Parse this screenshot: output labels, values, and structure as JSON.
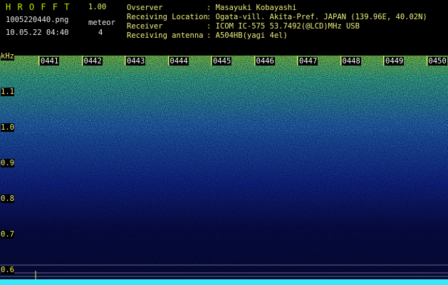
{
  "header": {
    "app_name": "H R O F F T",
    "version": "1.00",
    "file_name": "1005220440.png",
    "counter_label": "meteor",
    "timestamp": "10.05.22 04:40",
    "counter_value": "4"
  },
  "station": {
    "rows": [
      {
        "label": "Ovserver",
        "value": ": Masayuki Kobayashi"
      },
      {
        "label": "Receiving Location",
        "value": ": Ogata-vill. Akita-Pref. JAPAN (139.96E, 40.02N)"
      },
      {
        "label": "Receiver",
        "value": ": ICOM IC-575 53.7492(@LCD)MHz USB"
      },
      {
        "label": "Receiving antenna",
        "value": ": A504HB(yagi 4el)"
      }
    ]
  },
  "spectrogram": {
    "unit": "kHz",
    "frequency_labels": [
      "1.1",
      "1.0",
      "0.9",
      "0.8",
      "0.7",
      "0.6"
    ],
    "time_labels": [
      "0441",
      "0442",
      "0443",
      "0444",
      "0445",
      "0446",
      "0447",
      "0448",
      "0449",
      "0450"
    ]
  }
}
